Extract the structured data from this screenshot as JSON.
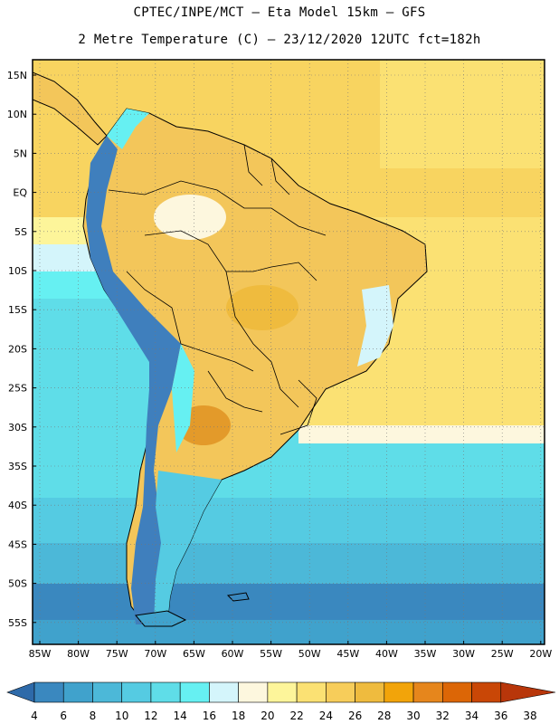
{
  "title_line1": "CPTEC/INPE/MCT –  Eta Model 15km – GFS",
  "title_line2": "2 Metre Temperature (C) – 23/12/2020 12UTC fct=182h",
  "lat_labels": [
    "15N",
    "10N",
    "5N",
    "EQ",
    "5S",
    "10S",
    "15S",
    "20S",
    "25S",
    "30S",
    "35S",
    "40S",
    "45S",
    "50S",
    "55S"
  ],
  "lon_labels": [
    "85W",
    "80W",
    "75W",
    "70W",
    "65W",
    "60W",
    "55W",
    "50W",
    "45W",
    "40W",
    "35W",
    "30W",
    "25W",
    "20W"
  ],
  "colorbar": {
    "labels": [
      "4",
      "6",
      "8",
      "10",
      "12",
      "14",
      "16",
      "18",
      "20",
      "22",
      "24",
      "26",
      "28",
      "30",
      "32",
      "34",
      "36",
      "38"
    ],
    "colors": [
      "#2e6aa9",
      "#3a88bf",
      "#40a2cc",
      "#4cb8d8",
      "#55cbe2",
      "#5fdde8",
      "#66f0f2",
      "#d4f5fb",
      "#fdf7de",
      "#fdf59a",
      "#fbe173",
      "#f7cd5a",
      "#efbb3e",
      "#f2a40a",
      "#e6861c",
      "#dc6606",
      "#c94706",
      "#b8360a"
    ]
  },
  "legend": {
    "ocean_north": "#fae08a",
    "land_warm": "#f3c65a",
    "land_hot": "#e39a2a",
    "ocean_mid": "#5fdde8",
    "ocean_south": "#2e6aa9",
    "andes": "#3f7fbd",
    "border": "#000000"
  }
}
